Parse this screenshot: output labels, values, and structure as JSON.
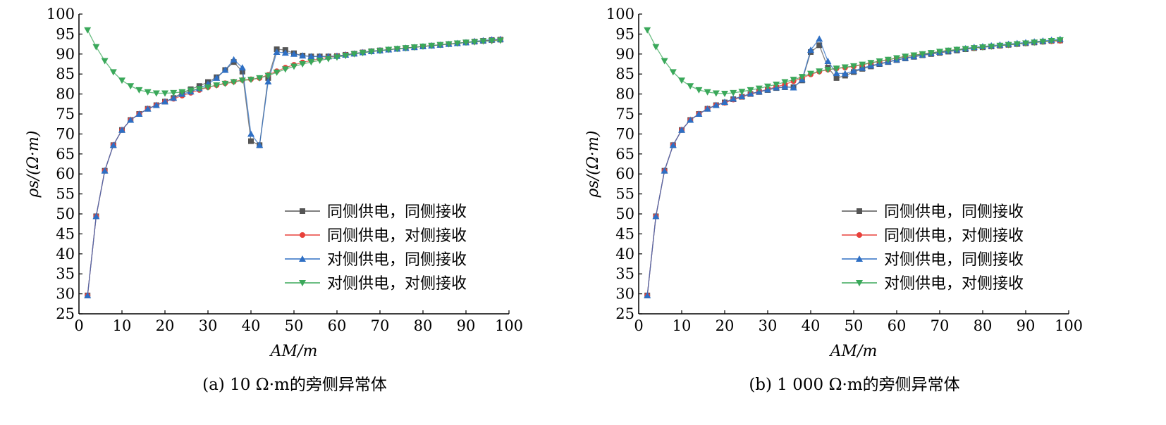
{
  "chart_data": [
    {
      "type": "line",
      "caption": "(a) 10 Ω·m的旁侧异常体",
      "xlabel": "AM/m",
      "ylabel": "ρs/(Ω·m)",
      "xlim": [
        0,
        100
      ],
      "ylim": [
        25,
        100
      ],
      "xticks": [
        0,
        10,
        20,
        30,
        40,
        50,
        60,
        70,
        80,
        90,
        100
      ],
      "yticks": [
        25,
        30,
        35,
        40,
        45,
        50,
        55,
        60,
        65,
        70,
        75,
        80,
        85,
        90,
        95,
        100
      ],
      "grid": false,
      "legend_position": "bottom-right",
      "x": [
        2,
        4,
        6,
        8,
        10,
        12,
        14,
        16,
        18,
        20,
        22,
        24,
        26,
        28,
        30,
        32,
        34,
        36,
        38,
        40,
        42,
        44,
        46,
        48,
        50,
        52,
        54,
        56,
        58,
        60,
        62,
        64,
        66,
        68,
        70,
        72,
        74,
        76,
        78,
        80,
        82,
        84,
        86,
        88,
        90,
        92,
        94,
        96,
        98
      ],
      "series": [
        {
          "name": "同侧供电，同侧接收",
          "color": "#555555",
          "marker": "square",
          "values": [
            29.6,
            49.4,
            60.8,
            67.2,
            71,
            73.5,
            75,
            76.3,
            77.2,
            78.1,
            79,
            80.3,
            81.2,
            82,
            83,
            84.2,
            86,
            88,
            85.6,
            68.2,
            67.2,
            84,
            91.2,
            91,
            90.2,
            89.6,
            89.4,
            89.4,
            89.4,
            89.5,
            89.8,
            90.1,
            90.4,
            90.7,
            90.9,
            91.1,
            91.3,
            91.5,
            91.7,
            91.9,
            92.1,
            92.3,
            92.5,
            92.7,
            92.9,
            93.1,
            93.3,
            93.5,
            93.6
          ]
        },
        {
          "name": "同侧供电，对侧接收",
          "color": "#e8403a",
          "marker": "circle",
          "values": [
            29.6,
            49.4,
            60.8,
            67.2,
            71,
            73.5,
            75,
            76.3,
            77.2,
            78.1,
            78.8,
            79.6,
            80.3,
            81,
            81.7,
            82.2,
            82.7,
            83.1,
            83.5,
            83.7,
            84,
            84.8,
            85.7,
            86.6,
            87.3,
            87.9,
            88.4,
            88.8,
            89.2,
            89.5,
            89.8,
            90.1,
            90.4,
            90.7,
            90.9,
            91.1,
            91.3,
            91.5,
            91.7,
            91.9,
            92.1,
            92.3,
            92.5,
            92.7,
            92.9,
            93.1,
            93.3,
            93.4,
            93.6
          ]
        },
        {
          "name": "对侧供电，同侧接收",
          "color": "#2e6fc4",
          "marker": "triangle-up",
          "values": [
            29.6,
            49.4,
            60.8,
            67.2,
            71,
            73.5,
            75,
            76.3,
            77.2,
            78.1,
            79,
            80,
            80.6,
            81.4,
            82.5,
            84,
            86,
            88.6,
            86.6,
            70,
            67.2,
            83.1,
            90.5,
            90.3,
            90,
            89.6,
            89.4,
            89.4,
            89.4,
            89.5,
            89.8,
            90.1,
            90.4,
            90.7,
            90.9,
            91.1,
            91.3,
            91.5,
            91.7,
            91.9,
            92.1,
            92.3,
            92.5,
            92.7,
            92.9,
            93.2,
            93.4,
            93.6,
            93.7
          ]
        },
        {
          "name": "对侧供电，对侧接收",
          "color": "#3aa85a",
          "marker": "triangle-down",
          "values": [
            96,
            91.8,
            88.3,
            85.5,
            83.4,
            82,
            81,
            80.5,
            80.2,
            80.2,
            80.3,
            80.5,
            80.9,
            81.3,
            81.7,
            82.2,
            82.6,
            83,
            83.4,
            83.6,
            84,
            84.6,
            85.4,
            86.2,
            86.9,
            87.5,
            88,
            88.4,
            88.8,
            89.2,
            89.6,
            90,
            90.3,
            90.6,
            90.8,
            91.1,
            91.3,
            91.5,
            91.7,
            91.9,
            92.1,
            92.3,
            92.5,
            92.7,
            92.9,
            93,
            93.2,
            93.3,
            93.4
          ]
        }
      ]
    },
    {
      "type": "line",
      "caption": "(b) 1 000 Ω·m的旁侧异常体",
      "xlabel": "AM/m",
      "ylabel": "ρs/(Ω·m)",
      "xlim": [
        0,
        100
      ],
      "ylim": [
        25,
        100
      ],
      "xticks": [
        0,
        10,
        20,
        30,
        40,
        50,
        60,
        70,
        80,
        90,
        100
      ],
      "yticks": [
        25,
        30,
        35,
        40,
        45,
        50,
        55,
        60,
        65,
        70,
        75,
        80,
        85,
        90,
        95,
        100
      ],
      "grid": false,
      "legend_position": "bottom-right",
      "x": [
        2,
        4,
        6,
        8,
        10,
        12,
        14,
        16,
        18,
        20,
        22,
        24,
        26,
        28,
        30,
        32,
        34,
        36,
        38,
        40,
        42,
        44,
        46,
        48,
        50,
        52,
        54,
        56,
        58,
        60,
        62,
        64,
        66,
        68,
        70,
        72,
        74,
        76,
        78,
        80,
        82,
        84,
        86,
        88,
        90,
        92,
        94,
        96,
        98
      ],
      "series": [
        {
          "name": "同侧供电，同侧接收",
          "color": "#555555",
          "marker": "square",
          "values": [
            29.6,
            49.4,
            60.8,
            67.2,
            71,
            73.5,
            75,
            76.3,
            77.2,
            77.9,
            78.7,
            79.3,
            80,
            80.5,
            81,
            81.5,
            81.7,
            81.7,
            83.4,
            90.5,
            92.2,
            86.6,
            84,
            84.6,
            85.5,
            86.3,
            86.9,
            87.5,
            88,
            88.5,
            88.9,
            89.3,
            89.7,
            90,
            90.3,
            90.6,
            90.9,
            91.2,
            91.5,
            91.7,
            91.9,
            92.1,
            92.3,
            92.5,
            92.7,
            92.9,
            93.1,
            93.3,
            93.4
          ]
        },
        {
          "name": "同侧供电，对侧接收",
          "color": "#e8403a",
          "marker": "circle",
          "values": [
            29.6,
            49.4,
            60.8,
            67.2,
            71,
            73.5,
            75,
            76.3,
            77.2,
            77.8,
            78.6,
            79.3,
            80,
            80.6,
            81.2,
            81.8,
            82.4,
            83.2,
            84,
            84.9,
            85.6,
            86.1,
            86.4,
            86.6,
            86.9,
            87.3,
            87.8,
            88.2,
            88.6,
            89,
            89.4,
            89.7,
            90,
            90.3,
            90.6,
            90.9,
            91.1,
            91.3,
            91.5,
            91.7,
            91.9,
            92.1,
            92.3,
            92.5,
            92.7,
            92.9,
            93.1,
            93.2,
            93.3
          ]
        },
        {
          "name": "对侧供电，同侧接收",
          "color": "#2e6fc4",
          "marker": "triangle-up",
          "values": [
            29.6,
            49.4,
            60.8,
            67.2,
            71,
            73.5,
            75,
            76.3,
            77.2,
            78,
            78.8,
            79.4,
            80.1,
            80.6,
            81.1,
            81.6,
            81.8,
            81.6,
            83.6,
            91,
            93.8,
            88.2,
            85.2,
            85.1,
            85.8,
            86.5,
            87.1,
            87.6,
            88.1,
            88.6,
            89,
            89.4,
            89.8,
            90.2,
            90.5,
            90.8,
            91.1,
            91.4,
            91.7,
            91.9,
            92.1,
            92.3,
            92.5,
            92.7,
            92.9,
            93.1,
            93.3,
            93.5,
            93.7
          ]
        },
        {
          "name": "对侧供电，对侧接收",
          "color": "#3aa85a",
          "marker": "triangle-down",
          "values": [
            96,
            91.8,
            88.3,
            85.5,
            83.4,
            82,
            81,
            80.5,
            80.2,
            80.1,
            80.3,
            80.6,
            81,
            81.4,
            81.9,
            82.4,
            83,
            83.6,
            84.3,
            85.1,
            85.7,
            86.1,
            86.4,
            86.7,
            87,
            87.4,
            87.8,
            88.2,
            88.6,
            89,
            89.4,
            89.7,
            90,
            90.3,
            90.6,
            90.9,
            91.1,
            91.3,
            91.5,
            91.7,
            91.9,
            92.1,
            92.3,
            92.5,
            92.7,
            92.9,
            93.1,
            93.3,
            93.5
          ]
        }
      ]
    }
  ]
}
